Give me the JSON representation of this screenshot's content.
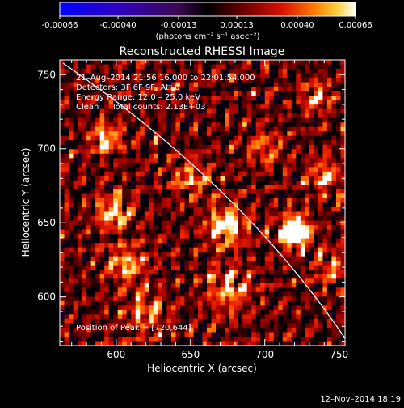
{
  "chart_data": {
    "type": "heatmap",
    "title": "Reconstructed RHESSI Image",
    "xlabel": "Heliocentric X (arcsec)",
    "ylabel": "Heliocentric Y (arcsec)",
    "xlim": [
      562,
      754
    ],
    "ylim": [
      567,
      760
    ],
    "x_ticks": [
      "600",
      "650",
      "700",
      "750"
    ],
    "x_tick_values": [
      600,
      650,
      700,
      750
    ],
    "y_ticks": [
      "600",
      "650",
      "700",
      "750"
    ],
    "y_tick_values": [
      600,
      650,
      700,
      750
    ],
    "colorbar": {
      "ticks": [
        "-0.00066",
        "-0.00040",
        "-0.00013",
        "0.00013",
        "0.00040",
        "0.00066"
      ],
      "tick_values": [
        -0.00066,
        -0.0004,
        -0.00013,
        0.00013,
        0.0004,
        0.00066
      ],
      "range": [
        -0.00066,
        0.00066
      ],
      "unit_label": "(photons cm⁻² s⁻¹ asec⁻²)"
    },
    "annotations": [
      "21–Aug–2014 21:56:16.000 to 22:01:54.000",
      "Detectors: 3F 6F 9F, Att 0",
      "Energy Range: 12.0 – 25.0 keV",
      "Clean     Total counts: 2.13E+03"
    ],
    "peak_label": "Position of Peak = [720,644]",
    "peak": {
      "x": 720,
      "y": 644
    },
    "footer": "12–Nov–2014 18:19",
    "colors": {
      "background": "#000000",
      "limb": "#ffffff"
    }
  }
}
